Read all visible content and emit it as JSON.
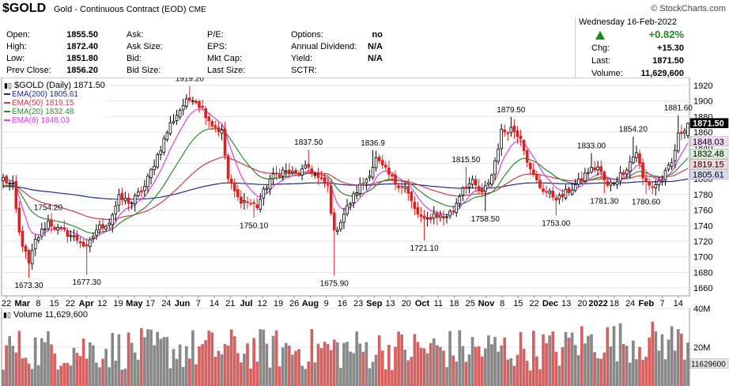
{
  "header": {
    "symbol": "$GOLD",
    "description": "Gold - Continuous Contract (EOD)",
    "exchange": "CME",
    "source": "© StockCharts.com",
    "date": "Wednesday  16-Feb-2022"
  },
  "quote": {
    "col1": [
      {
        "label": "Open:",
        "value": "1855.50"
      },
      {
        "label": "High:",
        "value": "1872.40"
      },
      {
        "label": "Low:",
        "value": "1851.80"
      },
      {
        "label": "Prev Close:",
        "value": "1856.20"
      }
    ],
    "col2": [
      {
        "label": "Ask:",
        "value": ""
      },
      {
        "label": "Ask Size:",
        "value": ""
      },
      {
        "label": "Bid:",
        "value": ""
      },
      {
        "label": "Bid Size:",
        "value": ""
      }
    ],
    "col3": [
      {
        "label": "P/E:",
        "value": ""
      },
      {
        "label": "EPS:",
        "value": ""
      },
      {
        "label": "Mkt Cap:",
        "value": ""
      },
      {
        "label": "Last Size:",
        "value": ""
      }
    ],
    "col4": [
      {
        "label": "Options:",
        "value": "no"
      },
      {
        "label": "Annual Dividend:",
        "value": "N/A"
      },
      {
        "label": "Yield:",
        "value": "N/A"
      },
      {
        "label": "SCTR:",
        "value": ""
      }
    ],
    "change_pct": "+0.82%",
    "chg_label": "Chg:",
    "chg_value": "+15.30",
    "last_label": "Last:",
    "last_value": "1871.50",
    "volume_label": "Volume:",
    "volume_value": "11,629,600"
  },
  "colors": {
    "up": "#000000",
    "down": "#e02020",
    "ema200": "#1c2a8c",
    "ema50": "#c83c50",
    "ema20": "#2e8a2e",
    "ema8": "#e040e0",
    "vol_up": "#888888",
    "vol_down": "#d66060"
  },
  "chart_data": {
    "type": "candlestick",
    "legend_title": "$GOLD (Daily) 1871.50",
    "legend_placement": "top-left",
    "legend": [
      {
        "name": "EMA(200)",
        "value": "1805.61",
        "color": "#1c2a8c"
      },
      {
        "name": "EMA(50)",
        "value": "1819.15",
        "color": "#c83c50"
      },
      {
        "name": "EMA(20)",
        "value": "1832.48",
        "color": "#2e8a2e"
      },
      {
        "name": "EMA(8)",
        "value": "1848.03",
        "color": "#e040e0"
      }
    ],
    "ylim": [
      1650,
      1930
    ],
    "yticks": [
      1660,
      1680,
      1700,
      1720,
      1740,
      1760,
      1780,
      1800,
      1820,
      1840,
      1860,
      1880,
      1900,
      1920
    ],
    "last_tags": [
      {
        "value": 1871.5,
        "text": "1871.50",
        "bg": "#000000",
        "fg": "#ffffff"
      },
      {
        "value": 1848.03,
        "text": "1848.03",
        "bg": "#f7d7f7",
        "fg": "#000000"
      },
      {
        "value": 1832.48,
        "text": "1832.48",
        "bg": "#d7efd7",
        "fg": "#000000"
      },
      {
        "value": 1819.15,
        "text": "1819.15",
        "bg": "#f5d7dc",
        "fg": "#000000"
      },
      {
        "value": 1805.61,
        "text": "1805.61",
        "bg": "#d7dbf2",
        "fg": "#000000"
      }
    ],
    "xticks": [
      "22",
      "Mar",
      "8",
      "15",
      "22",
      "Apr",
      "12",
      "19",
      "May",
      "17",
      "24",
      "Jun",
      "7",
      "14",
      "21",
      "Jul",
      "12",
      "19",
      "26",
      "Aug",
      "9",
      "16",
      "23",
      "Sep",
      "13",
      "20",
      "Oct",
      "11",
      "18",
      "25",
      "Nov",
      "8",
      "15",
      "22",
      "Dec",
      "13",
      "20",
      "2022",
      "18",
      "24",
      "Feb",
      "7",
      "14"
    ],
    "bold_xticks": [
      "Mar",
      "Apr",
      "May",
      "Jun",
      "Jul",
      "Aug",
      "Sep",
      "Oct",
      "Nov",
      "Dec",
      "2022",
      "Feb"
    ],
    "annotations": [
      {
        "i": 8,
        "price": 1673.3,
        "text": "1673.30",
        "pos": "below"
      },
      {
        "i": 14,
        "price": 1754.2,
        "text": "1754.20",
        "pos": "above"
      },
      {
        "i": 26,
        "price": 1677.3,
        "text": "1677.30",
        "pos": "below"
      },
      {
        "i": 58,
        "price": 1919.2,
        "text": "1919.20",
        "pos": "above"
      },
      {
        "i": 78,
        "price": 1750.1,
        "text": "1750.10",
        "pos": "below"
      },
      {
        "i": 95,
        "price": 1837.5,
        "text": "1837.50",
        "pos": "above"
      },
      {
        "i": 103,
        "price": 1675.9,
        "text": "1675.90",
        "pos": "below"
      },
      {
        "i": 115,
        "price": 1836.9,
        "text": "1836.9",
        "pos": "above"
      },
      {
        "i": 131,
        "price": 1721.1,
        "text": "1721.10",
        "pos": "below"
      },
      {
        "i": 144,
        "price": 1815.5,
        "text": "1815.50",
        "pos": "above"
      },
      {
        "i": 150,
        "price": 1758.5,
        "text": "1758.50",
        "pos": "below"
      },
      {
        "i": 158,
        "price": 1879.5,
        "text": "1879.50",
        "pos": "above"
      },
      {
        "i": 172,
        "price": 1753.0,
        "text": "1753.00",
        "pos": "below"
      },
      {
        "i": 183,
        "price": 1833.0,
        "text": "1833.00",
        "pos": "above"
      },
      {
        "i": 187,
        "price": 1781.3,
        "text": "1781.30",
        "pos": "below"
      },
      {
        "i": 196,
        "price": 1854.2,
        "text": "1854.20",
        "pos": "above"
      },
      {
        "i": 200,
        "price": 1780.6,
        "text": "1780.60",
        "pos": "below"
      },
      {
        "i": 210,
        "price": 1881.6,
        "text": "1881.60",
        "pos": "above"
      }
    ],
    "volume": {
      "legend": "Volume 11,629,600",
      "ylim": [
        0,
        40
      ],
      "yticks": [
        {
          "v": 40,
          "text": "40M"
        },
        {
          "v": 20,
          "text": "20M"
        }
      ],
      "last_tag": {
        "v": 11.6,
        "text": "11629600"
      }
    },
    "anchors": [
      [
        0,
        1800
      ],
      [
        3,
        1790
      ],
      [
        5,
        1730
      ],
      [
        8,
        1690
      ],
      [
        10,
        1720
      ],
      [
        14,
        1745
      ],
      [
        17,
        1735
      ],
      [
        20,
        1730
      ],
      [
        24,
        1720
      ],
      [
        26,
        1710
      ],
      [
        29,
        1735
      ],
      [
        33,
        1745
      ],
      [
        36,
        1775
      ],
      [
        40,
        1770
      ],
      [
        44,
        1790
      ],
      [
        48,
        1830
      ],
      [
        52,
        1870
      ],
      [
        56,
        1895
      ],
      [
        59,
        1905
      ],
      [
        62,
        1890
      ],
      [
        65,
        1870
      ],
      [
        68,
        1860
      ],
      [
        70,
        1800
      ],
      [
        73,
        1775
      ],
      [
        76,
        1770
      ],
      [
        79,
        1765
      ],
      [
        83,
        1800
      ],
      [
        87,
        1810
      ],
      [
        91,
        1805
      ],
      [
        95,
        1815
      ],
      [
        98,
        1800
      ],
      [
        101,
        1790
      ],
      [
        103,
        1730
      ],
      [
        106,
        1755
      ],
      [
        110,
        1785
      ],
      [
        113,
        1800
      ],
      [
        116,
        1825
      ],
      [
        119,
        1810
      ],
      [
        122,
        1795
      ],
      [
        125,
        1790
      ],
      [
        128,
        1760
      ],
      [
        131,
        1745
      ],
      [
        134,
        1755
      ],
      [
        137,
        1750
      ],
      [
        140,
        1760
      ],
      [
        143,
        1790
      ],
      [
        146,
        1795
      ],
      [
        149,
        1780
      ],
      [
        152,
        1805
      ],
      [
        155,
        1860
      ],
      [
        158,
        1865
      ],
      [
        161,
        1855
      ],
      [
        164,
        1810
      ],
      [
        167,
        1790
      ],
      [
        170,
        1780
      ],
      [
        173,
        1775
      ],
      [
        176,
        1785
      ],
      [
        179,
        1795
      ],
      [
        182,
        1810
      ],
      [
        185,
        1815
      ],
      [
        188,
        1790
      ],
      [
        191,
        1800
      ],
      [
        194,
        1815
      ],
      [
        197,
        1835
      ],
      [
        199,
        1800
      ],
      [
        202,
        1790
      ],
      [
        205,
        1800
      ],
      [
        208,
        1820
      ],
      [
        210,
        1855
      ],
      [
        213,
        1871.5
      ]
    ]
  }
}
